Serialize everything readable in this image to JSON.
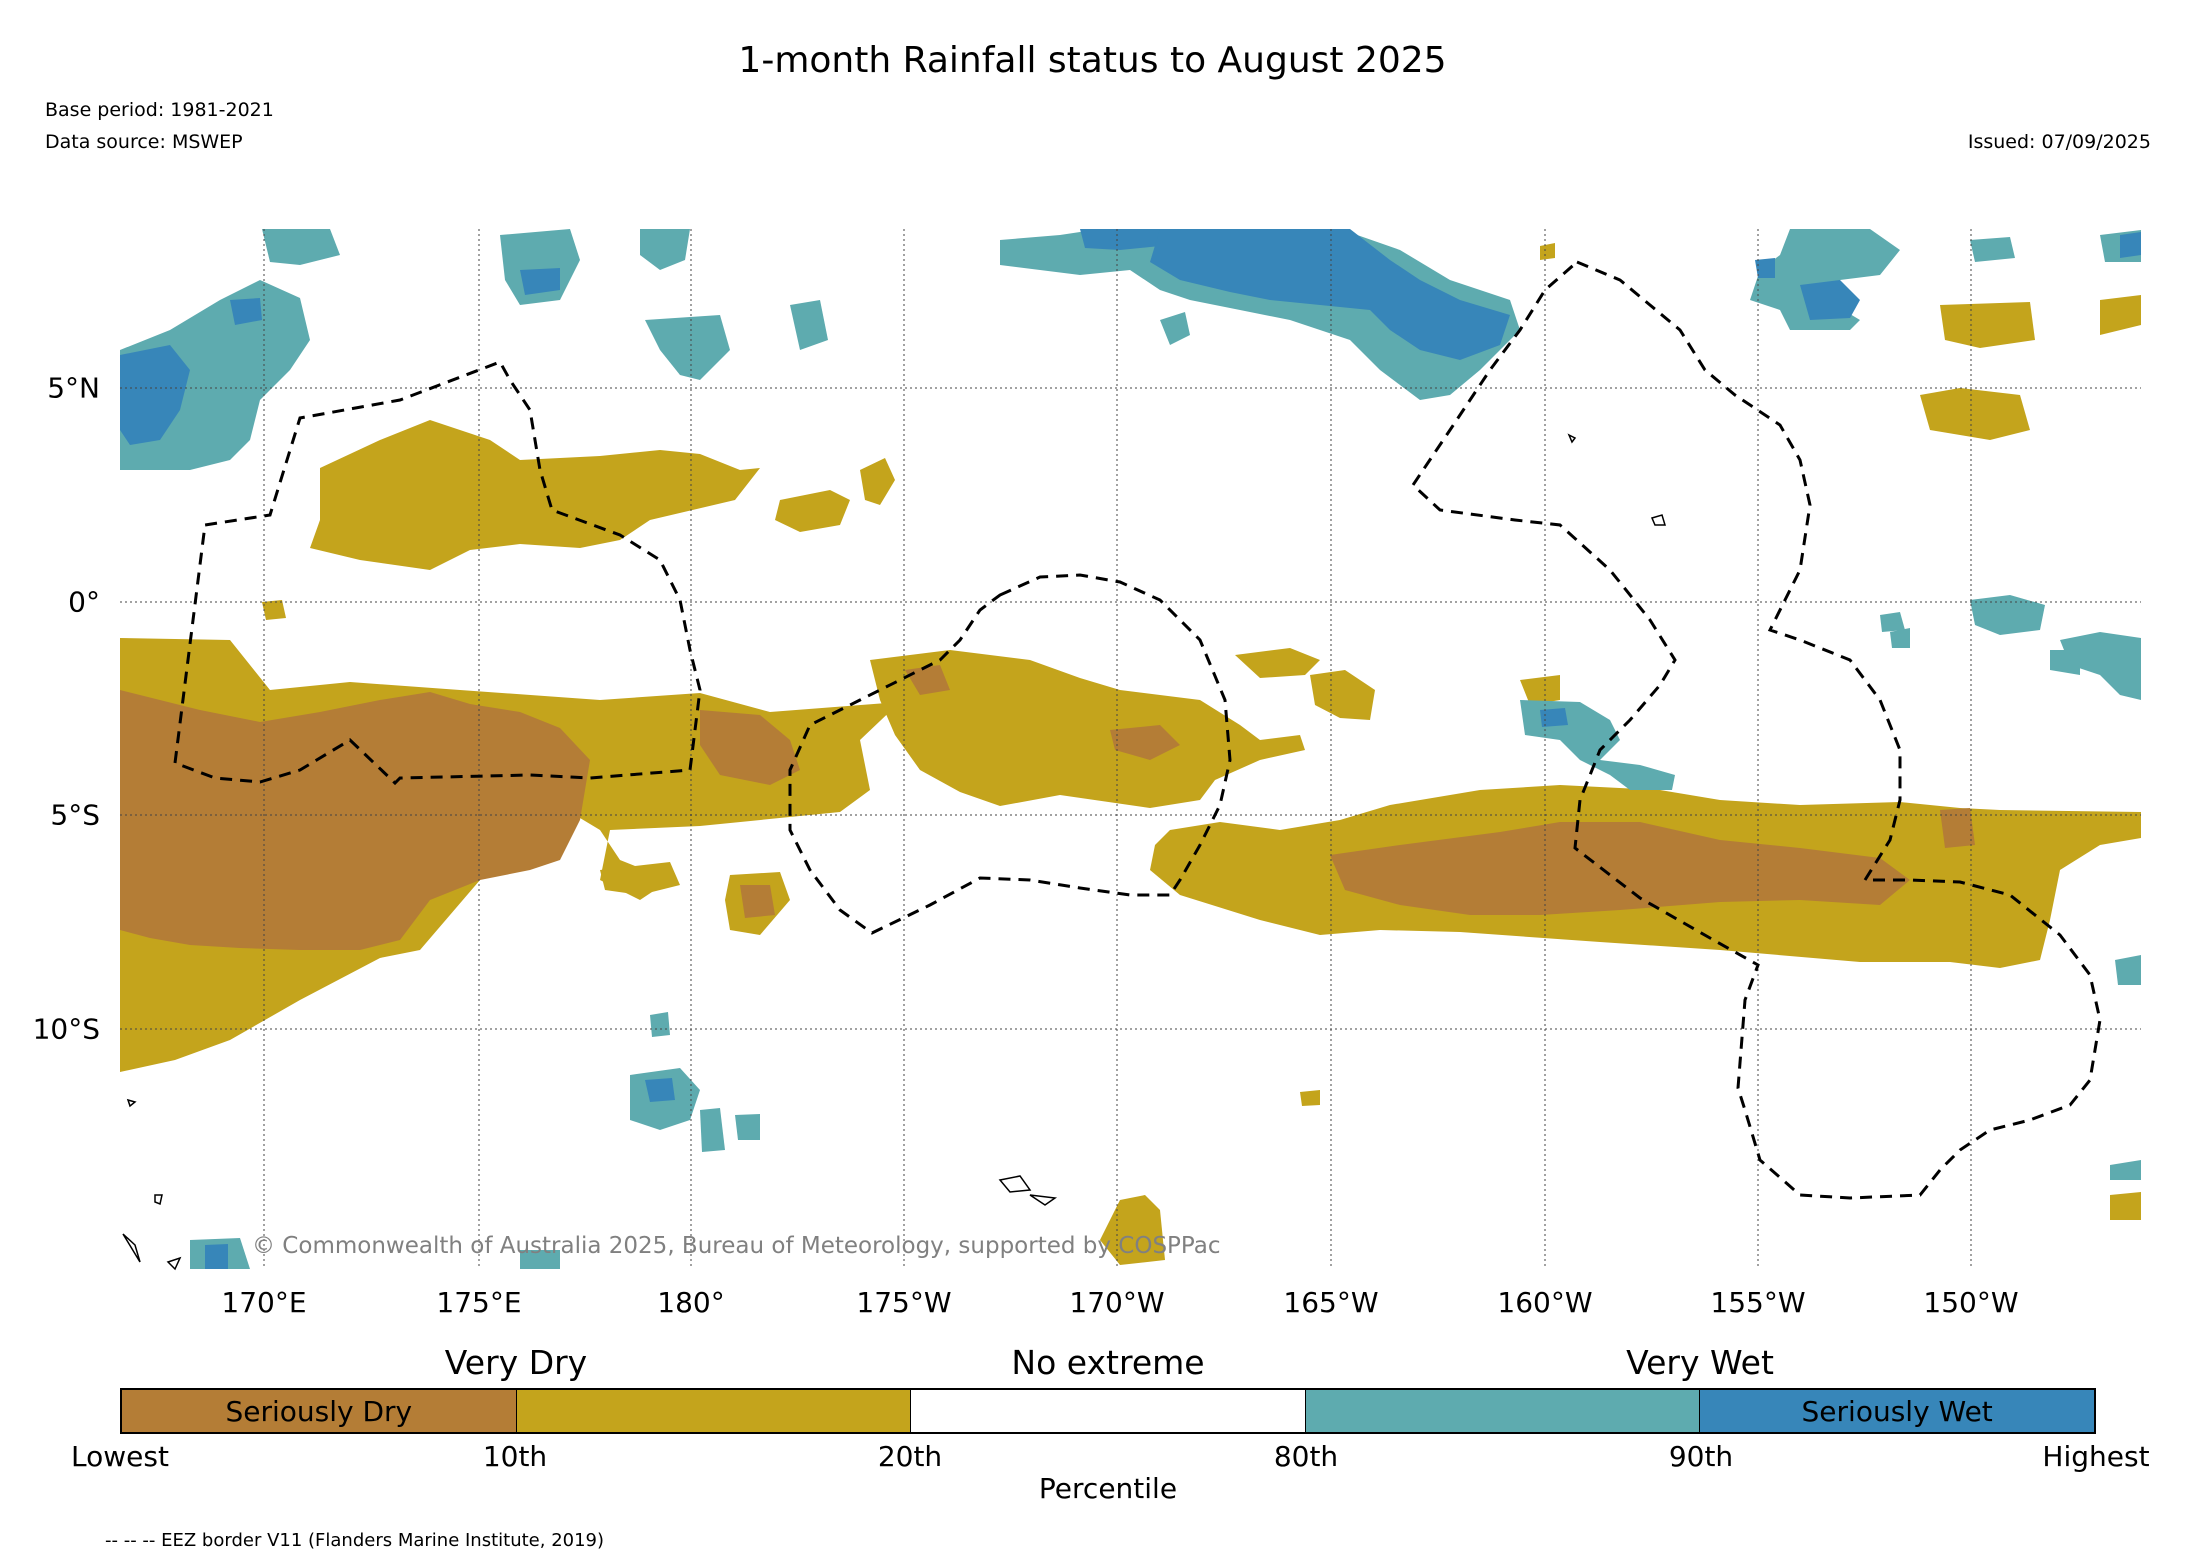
{
  "title": "1-month Rainfall status to August 2025",
  "meta": {
    "base_period": "Base period: 1981-2021",
    "data_source": "Data source: MSWEP",
    "issued": "Issued: 07/09/2025"
  },
  "map": {
    "lon_labels": [
      "170°E",
      "175°E",
      "180°",
      "175°W",
      "170°W",
      "165°W",
      "160°W",
      "155°W",
      "150°W"
    ],
    "lat_labels": [
      "5°N",
      "0°",
      "5°S",
      "10°S"
    ],
    "copyright": "© Commonwealth of Australia 2025, Bureau of Meteorology, supported by COSPPac"
  },
  "legend": {
    "headings": [
      "Very Dry",
      "No extreme",
      "Very Wet"
    ],
    "segments": [
      {
        "label": "Seriously Dry",
        "color": "#b47d36"
      },
      {
        "label": "",
        "color": "#c4a41c"
      },
      {
        "label": "",
        "color": "#ffffff"
      },
      {
        "label": "",
        "color": "#5eabaf"
      },
      {
        "label": "Seriously Wet",
        "color": "#3786b9"
      }
    ],
    "tick_labels": [
      "Lowest",
      "10th",
      "20th",
      "80th",
      "90th",
      "Highest"
    ],
    "axis_label": "Percentile"
  },
  "footer_note": "-- -- -- EEZ border V11 (Flanders Marine Institute, 2019)",
  "colors": {
    "seriously_dry": "#b47d36",
    "very_dry": "#c4a41c",
    "very_wet": "#5eabaf",
    "seriously_wet": "#3786b9"
  }
}
